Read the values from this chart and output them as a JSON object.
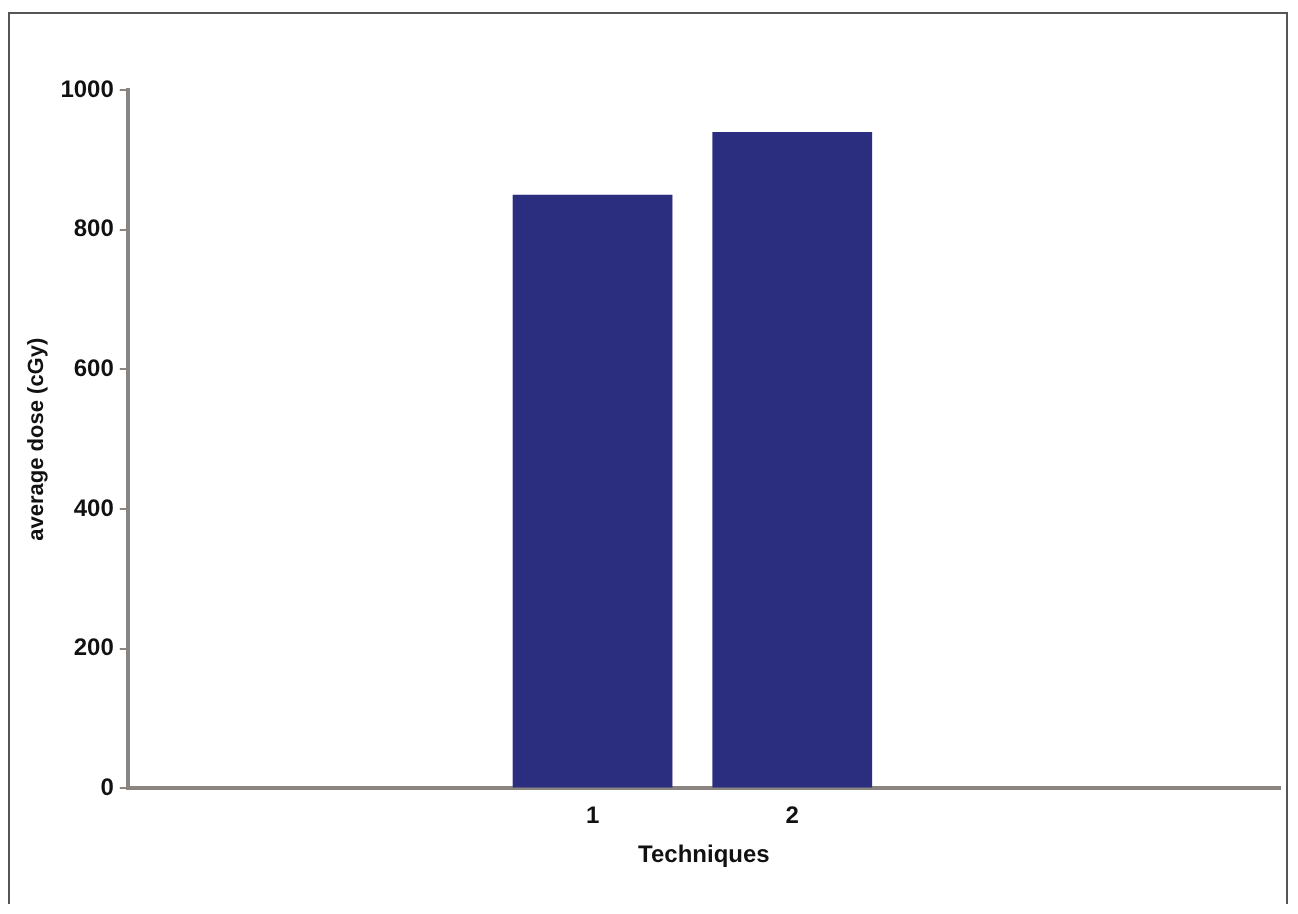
{
  "chart_data": {
    "type": "bar",
    "xlabel": "Techniques",
    "ylabel": "average dose (cGy)",
    "categories": [
      "1",
      "2"
    ],
    "values": [
      850,
      940
    ],
    "color": "#2b2d7e",
    "ylim": [
      0,
      1000
    ],
    "yticks": [
      0,
      200,
      400,
      600,
      800,
      1000
    ],
    "grid": false,
    "legend": false
  }
}
